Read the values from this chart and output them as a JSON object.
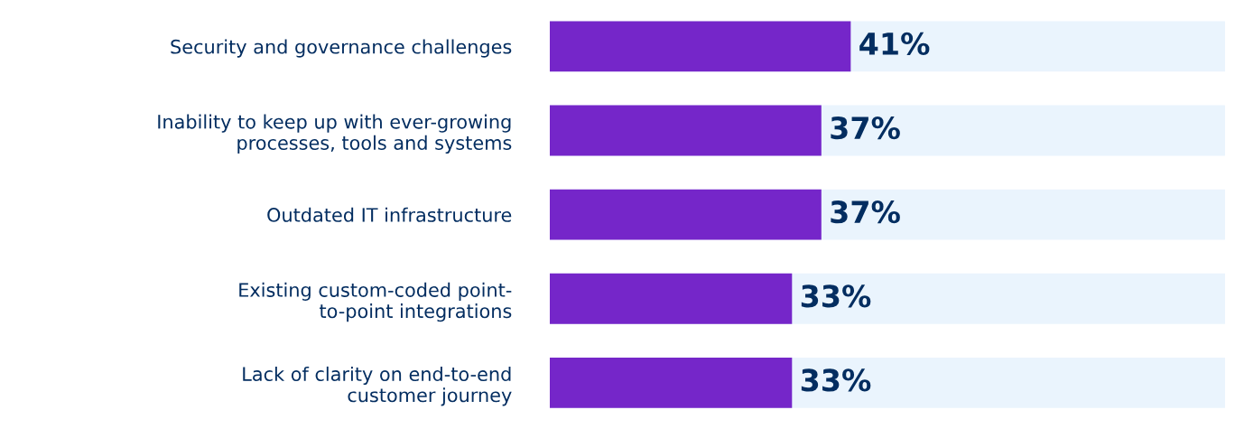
{
  "chart_data": {
    "type": "bar",
    "orientation": "horizontal",
    "categories": [
      "Security and governance challenges",
      "Inability to keep up with ever-growing\nprocesses, tools and systems",
      "Outdated IT infrastructure",
      "Existing custom-coded point-\nto-point integrations",
      "Lack of clarity on end-to-end\ncustomer journey"
    ],
    "values": [
      41,
      37,
      37,
      33,
      33
    ],
    "value_labels": [
      "41%",
      "37%",
      "37%",
      "33%",
      "33%"
    ],
    "color": "#7526c9",
    "xlim": [
      0,
      92
    ],
    "tick_labels": "y",
    "grid": false,
    "legend": false
  }
}
